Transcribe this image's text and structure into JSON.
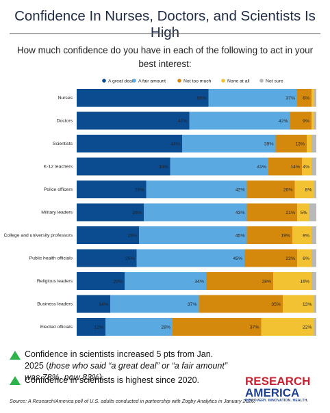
{
  "chart_data": {
    "type": "bar",
    "orientation": "horizontal",
    "stacked": true,
    "title": "Confidence In Nurses, Doctors, and Scientists Is High",
    "subtitle": "How much confidence do you have in each of the following to act in your best interest:",
    "categories": [
      "Nurses",
      "Doctors",
      "Scientists",
      "K-12 teachers",
      "Police officers",
      "Military leaders",
      "College and university professors",
      "Public health officials",
      "Religious leaders",
      "Business leaders",
      "Elected officials"
    ],
    "xlim": [
      0,
      100
    ],
    "series": [
      {
        "name": "A great deal",
        "color": "#0b4b8f",
        "values": [
          55,
          47,
          44,
          39,
          29,
          28,
          26,
          25,
          20,
          14,
          12
        ],
        "value_labels": [
          "55%",
          "47%",
          "44%",
          "39%",
          "29%",
          "28%",
          "26%",
          "25%",
          "20%",
          "14%",
          "12%"
        ]
      },
      {
        "name": "A fair amount",
        "color": "#5ba9e1",
        "values": [
          37,
          42,
          39,
          41,
          42,
          43,
          45,
          45,
          34,
          37,
          28
        ],
        "value_labels": [
          "37%",
          "42%",
          "39%",
          "41%",
          "42%",
          "43%",
          "45%",
          "45%",
          "34%",
          "37%",
          "28%"
        ]
      },
      {
        "name": "Not too much",
        "color": "#d5890c",
        "values": [
          6,
          9,
          13,
          14,
          20,
          21,
          19,
          22,
          28,
          35,
          37
        ],
        "value_labels": [
          "6%",
          "9%",
          "13%",
          "14%",
          "20%",
          "21%",
          "19%",
          "22%",
          "28%",
          "35%",
          "37%"
        ]
      },
      {
        "name": "None at all",
        "color": "#f2c232",
        "values": [
          1,
          1,
          2,
          4,
          8,
          5,
          8,
          6,
          16,
          13,
          22
        ],
        "value_labels": [
          null,
          null,
          null,
          "4%",
          "8%",
          "5%",
          "8%",
          "6%",
          "16%",
          "13%",
          "22%"
        ]
      },
      {
        "name": "Not sure",
        "color": "#b8b8b8",
        "values": [
          1,
          1,
          2,
          2,
          1,
          3,
          2,
          2,
          2,
          1,
          1
        ]
      }
    ]
  },
  "notes": [
    [
      {
        "text": "Confidence in scientists increased 5 pts from Jan. 2025 ("
      },
      {
        "text": "those who said “a great deal” or “a fair amount” was 78%, now 83%",
        "italic": true
      },
      {
        "text": ")."
      }
    ],
    [
      {
        "text": "Confidence in scientists is highest since 2020."
      }
    ]
  ],
  "source": "Source: A Research!America poll of U.S. adults conducted in partnership with Zogby Analytics in January 2026.",
  "logo": {
    "line1": "RESEARCH",
    "line2": "AMERICA",
    "tagline": "DISCOVERY. INNOVATION. HEALTH."
  }
}
